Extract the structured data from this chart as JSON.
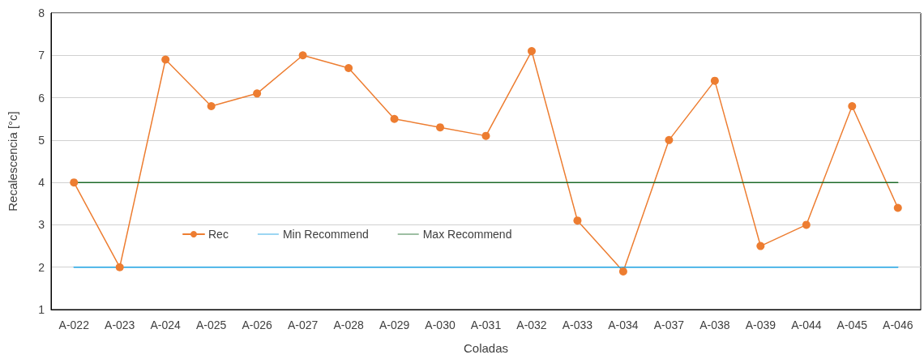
{
  "chart_data": {
    "type": "line",
    "xlabel": "Coladas",
    "ylabel": "Recalescencia [°c]",
    "categories": [
      "A-022",
      "A-023",
      "A-024",
      "A-025",
      "A-026",
      "A-027",
      "A-028",
      "A-029",
      "A-030",
      "A-031",
      "A-032",
      "A-033",
      "A-034",
      "A-037",
      "A-038",
      "A-039",
      "A-044",
      "A-045",
      "A-046"
    ],
    "series": [
      {
        "name": "Rec",
        "color": "#ed7d31",
        "marker": "circle",
        "values": [
          4.0,
          2.0,
          6.9,
          5.8,
          6.1,
          7.0,
          6.7,
          5.5,
          5.3,
          5.1,
          7.1,
          3.1,
          1.9,
          5.0,
          6.4,
          2.5,
          3.0,
          5.8,
          3.4
        ]
      },
      {
        "name": "Min Recommend",
        "color": "#1ba1e2",
        "marker": "none",
        "values": [
          2,
          2,
          2,
          2,
          2,
          2,
          2,
          2,
          2,
          2,
          2,
          2,
          2,
          2,
          2,
          2,
          2,
          2,
          2
        ]
      },
      {
        "name": "Max Recommend",
        "color": "#1e6b2a",
        "marker": "none",
        "values": [
          4,
          4,
          4,
          4,
          4,
          4,
          4,
          4,
          4,
          4,
          4,
          4,
          4,
          4,
          4,
          4,
          4,
          4,
          4
        ]
      }
    ],
    "ylim": [
      1,
      8
    ],
    "yticks": [
      1,
      2,
      3,
      4,
      5,
      6,
      7,
      8
    ],
    "grid": "y",
    "legend": "center left",
    "line_style": "solid"
  }
}
